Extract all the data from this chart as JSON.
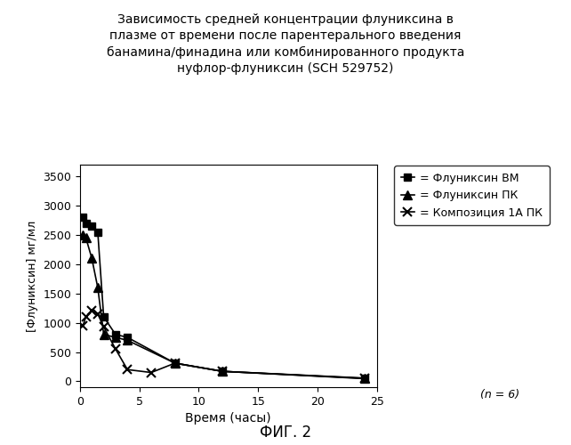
{
  "title": "Зависимость средней концентрации флуниксина в\nплазме от времени после парентерального введения\nбанамина/финадина или комбинированного продукта\nнуфлор-флуниксин (SCH 529752)",
  "xlabel": "Время (часы)",
  "ylabel": "[Флуниксин] мг/мл",
  "fig_label": "ФИГ. 2",
  "n_label": "(n = 6)",
  "series1_label": "= Флуниксин ВМ",
  "series2_label": "= Флуниксин ПК",
  "series3_label": "= Композиция 1А ПК",
  "series1_x": [
    0.25,
    0.5,
    1.0,
    1.5,
    2.0,
    3.0,
    4.0,
    8.0,
    12.0,
    24.0
  ],
  "series1_y": [
    2800,
    2700,
    2650,
    2550,
    1100,
    800,
    750,
    310,
    170,
    55
  ],
  "series2_x": [
    0.25,
    0.5,
    1.0,
    1.5,
    2.0,
    3.0,
    4.0,
    8.0,
    12.0,
    24.0
  ],
  "series2_y": [
    2500,
    2450,
    2100,
    1600,
    800,
    750,
    700,
    310,
    170,
    50
  ],
  "series3_x": [
    0.25,
    0.5,
    1.0,
    1.5,
    2.0,
    3.0,
    4.0,
    6.0,
    8.0,
    12.0,
    24.0
  ],
  "series3_y": [
    950,
    1100,
    1200,
    1150,
    930,
    550,
    200,
    150,
    310,
    170,
    45
  ],
  "xlim": [
    0,
    25
  ],
  "ylim": [
    -100,
    3700
  ],
  "xticks": [
    0,
    5,
    10,
    15,
    20,
    25
  ],
  "yticks": [
    0,
    500,
    1000,
    1500,
    2000,
    2500,
    3000,
    3500
  ],
  "background_color": "#ffffff",
  "line_color": "#000000"
}
